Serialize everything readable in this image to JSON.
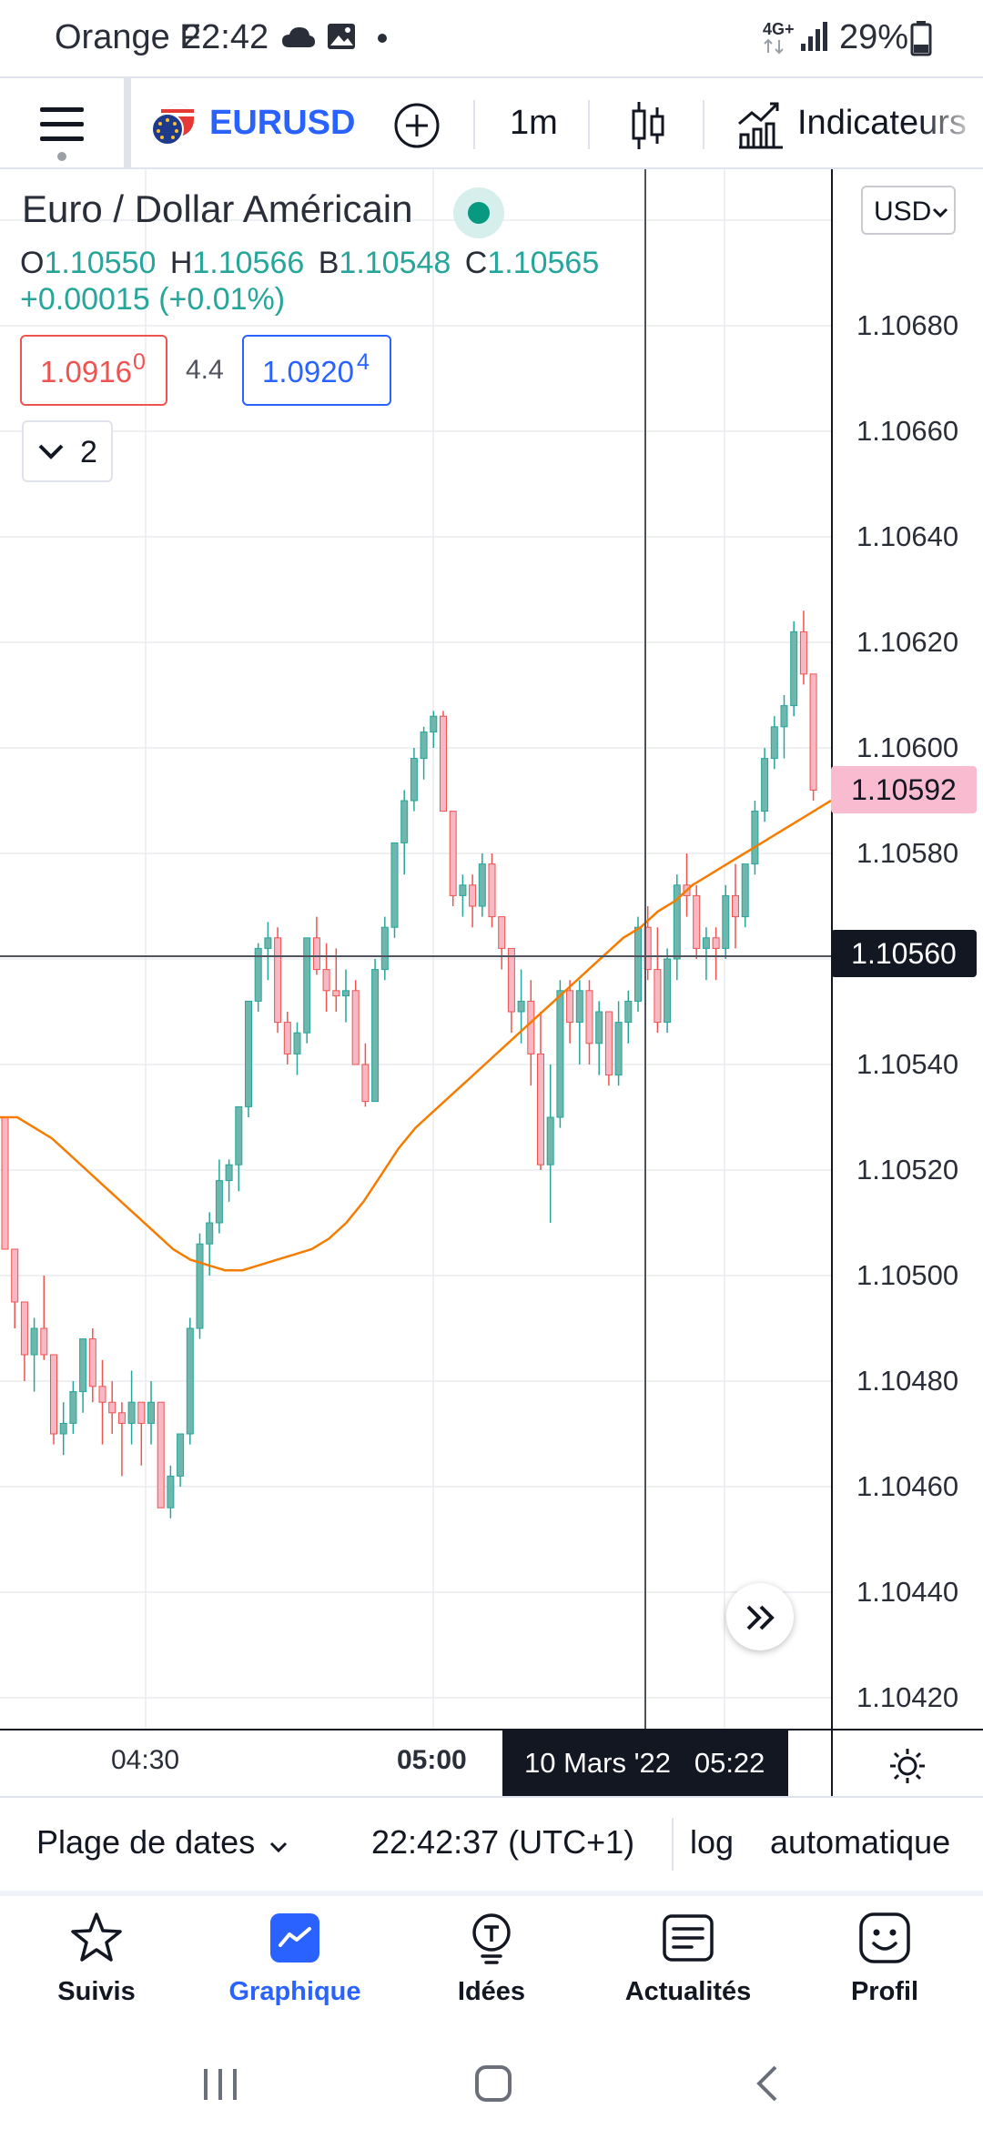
{
  "status_bar": {
    "carrier": "Orange F",
    "time": "22:42",
    "network": "4G+",
    "battery": "29%"
  },
  "toolbar": {
    "symbol": "EURUSD",
    "interval": "1m",
    "indicators_label": "Indicateurs"
  },
  "legend": {
    "title": "Euro / Dollar Américain",
    "open_key": "O",
    "open": "1.10550",
    "high_key": "H",
    "high": "1.10566",
    "low_key": "B",
    "low": "1.10548",
    "close_key": "C",
    "close": "1.10565",
    "change": "+0.00015 (+0.01%)",
    "sell_price_main": "1.0916",
    "sell_price_sup": "0",
    "spread": "4.4",
    "buy_price_main": "1.0920",
    "buy_price_sup": "4",
    "collapse_count": "2",
    "currency": "USD"
  },
  "price_axis": {
    "labels": [
      "1.10680",
      "1.10660",
      "1.10640",
      "1.10620",
      "1.10600",
      "1.10580",
      "1.10540",
      "1.10520",
      "1.10500",
      "1.10480",
      "1.10460",
      "1.10440",
      "1.10420"
    ],
    "last_price": "1.10592",
    "crosshair_price": "1.10560"
  },
  "time_axis": {
    "labels": [
      "04:30",
      "05:00"
    ],
    "crosshair_time": "10 Mars '22   05:22"
  },
  "date_bar": {
    "range_label": "Plage de dates",
    "clock": "22:42:37 (UTC+1)",
    "log_label": "log",
    "auto_label": "automatique"
  },
  "nav": {
    "items": [
      {
        "label": "Suivis"
      },
      {
        "label": "Graphique"
      },
      {
        "label": "Idées"
      },
      {
        "label": "Actualités"
      },
      {
        "label": "Profil"
      }
    ]
  },
  "colors": {
    "up": "#26a69a",
    "up_fill": "#6fb6ac",
    "down": "#ef5350",
    "down_fill": "#f7b8c4",
    "ma": "#f57c00",
    "accent": "#2962ff",
    "last_price_bg": "#f8bbd0"
  },
  "chart_data": {
    "type": "candlestick",
    "symbol": "EURUSD",
    "ylim": [
      1.10412,
      1.10708
    ],
    "candles": [
      [
        1.1053,
        1.1053,
        1.10505,
        1.10505
      ],
      [
        1.10505,
        1.10505,
        1.1049,
        1.10495
      ],
      [
        1.10495,
        1.10495,
        1.1048,
        1.10485
      ],
      [
        1.10485,
        1.10492,
        1.10478,
        1.1049
      ],
      [
        1.1049,
        1.105,
        1.10484,
        1.10485
      ],
      [
        1.10485,
        1.10485,
        1.10468,
        1.1047
      ],
      [
        1.1047,
        1.10476,
        1.10466,
        1.10472
      ],
      [
        1.10472,
        1.1048,
        1.1047,
        1.10478
      ],
      [
        1.10478,
        1.10488,
        1.10474,
        1.10488
      ],
      [
        1.10488,
        1.1049,
        1.10476,
        1.10479
      ],
      [
        1.10479,
        1.10484,
        1.10468,
        1.10476
      ],
      [
        1.10476,
        1.1048,
        1.1047,
        1.10474
      ],
      [
        1.10474,
        1.10476,
        1.10462,
        1.10472
      ],
      [
        1.10472,
        1.10482,
        1.10468,
        1.10476
      ],
      [
        1.10476,
        1.10476,
        1.10464,
        1.10472
      ],
      [
        1.10472,
        1.1048,
        1.10468,
        1.10476
      ],
      [
        1.10476,
        1.10476,
        1.10456,
        1.10456
      ],
      [
        1.10456,
        1.10464,
        1.10454,
        1.10462
      ],
      [
        1.10462,
        1.1047,
        1.1046,
        1.1047
      ],
      [
        1.1047,
        1.10492,
        1.10468,
        1.1049
      ],
      [
        1.1049,
        1.10508,
        1.10488,
        1.10506
      ],
      [
        1.10506,
        1.10512,
        1.105,
        1.1051
      ],
      [
        1.1051,
        1.10522,
        1.10508,
        1.10518
      ],
      [
        1.10518,
        1.10522,
        1.10514,
        1.10521
      ],
      [
        1.10521,
        1.10532,
        1.10516,
        1.10532
      ],
      [
        1.10532,
        1.10552,
        1.1053,
        1.10552
      ],
      [
        1.10552,
        1.10563,
        1.1055,
        1.10562
      ],
      [
        1.10562,
        1.10567,
        1.10556,
        1.10564
      ],
      [
        1.10564,
        1.10566,
        1.10546,
        1.10548
      ],
      [
        1.10548,
        1.1055,
        1.1054,
        1.10542
      ],
      [
        1.10542,
        1.10548,
        1.10538,
        1.10546
      ],
      [
        1.10546,
        1.10564,
        1.10544,
        1.10564
      ],
      [
        1.10564,
        1.10568,
        1.10557,
        1.10558
      ],
      [
        1.10558,
        1.10563,
        1.1055,
        1.10554
      ],
      [
        1.10554,
        1.10562,
        1.1055,
        1.10553
      ],
      [
        1.10553,
        1.10558,
        1.10548,
        1.10554
      ],
      [
        1.10554,
        1.10556,
        1.1054,
        1.1054
      ],
      [
        1.1054,
        1.10544,
        1.10532,
        1.10533
      ],
      [
        1.10533,
        1.1056,
        1.10533,
        1.10558
      ],
      [
        1.10558,
        1.10568,
        1.10556,
        1.10566
      ],
      [
        1.10566,
        1.10582,
        1.10564,
        1.10582
      ],
      [
        1.10582,
        1.10592,
        1.10576,
        1.1059
      ],
      [
        1.1059,
        1.106,
        1.10588,
        1.10598
      ],
      [
        1.10598,
        1.10604,
        1.10594,
        1.10603
      ],
      [
        1.10603,
        1.10607,
        1.106,
        1.10606
      ],
      [
        1.10606,
        1.10607,
        1.10588,
        1.10588
      ],
      [
        1.10588,
        1.10588,
        1.1057,
        1.10572
      ],
      [
        1.10572,
        1.10576,
        1.10568,
        1.10574
      ],
      [
        1.10574,
        1.10576,
        1.10566,
        1.1057
      ],
      [
        1.1057,
        1.1058,
        1.10568,
        1.10578
      ],
      [
        1.10578,
        1.1058,
        1.10566,
        1.10568
      ],
      [
        1.10568,
        1.10568,
        1.10558,
        1.10562
      ],
      [
        1.10562,
        1.10562,
        1.10546,
        1.1055
      ],
      [
        1.1055,
        1.10558,
        1.10544,
        1.10552
      ],
      [
        1.10552,
        1.10556,
        1.10536,
        1.10542
      ],
      [
        1.10542,
        1.1055,
        1.1052,
        1.10521
      ],
      [
        1.10521,
        1.1054,
        1.1051,
        1.1053
      ],
      [
        1.1053,
        1.10556,
        1.10528,
        1.10554
      ],
      [
        1.10554,
        1.10556,
        1.10544,
        1.10548
      ],
      [
        1.10548,
        1.10556,
        1.1054,
        1.10554
      ],
      [
        1.10554,
        1.10556,
        1.1054,
        1.10544
      ],
      [
        1.10544,
        1.10552,
        1.10538,
        1.1055
      ],
      [
        1.1055,
        1.1055,
        1.10536,
        1.10538
      ],
      [
        1.10538,
        1.10552,
        1.10536,
        1.10548
      ],
      [
        1.10548,
        1.10554,
        1.10544,
        1.10552
      ],
      [
        1.10552,
        1.10568,
        1.1055,
        1.10566
      ],
      [
        1.10566,
        1.1057,
        1.10556,
        1.10558
      ],
      [
        1.10558,
        1.10566,
        1.10546,
        1.10548
      ],
      [
        1.10548,
        1.10562,
        1.10546,
        1.1056
      ],
      [
        1.1056,
        1.10576,
        1.10556,
        1.10574
      ],
      [
        1.10574,
        1.1058,
        1.10568,
        1.10572
      ],
      [
        1.10572,
        1.10574,
        1.1056,
        1.10562
      ],
      [
        1.10562,
        1.10566,
        1.10556,
        1.10564
      ],
      [
        1.10564,
        1.10566,
        1.10556,
        1.10562
      ],
      [
        1.10562,
        1.10574,
        1.1056,
        1.10572
      ],
      [
        1.10572,
        1.10578,
        1.10562,
        1.10568
      ],
      [
        1.10568,
        1.10578,
        1.10566,
        1.10578
      ],
      [
        1.10578,
        1.1059,
        1.10576,
        1.10588
      ],
      [
        1.10588,
        1.106,
        1.10586,
        1.10598
      ],
      [
        1.10598,
        1.10606,
        1.10596,
        1.10604
      ],
      [
        1.10604,
        1.1061,
        1.10598,
        1.10608
      ],
      [
        1.10608,
        1.10624,
        1.10606,
        1.10622
      ],
      [
        1.10622,
        1.10626,
        1.10612,
        1.10614
      ],
      [
        1.10614,
        1.10614,
        1.1059,
        1.10592
      ]
    ],
    "ma": [
      1.1053,
      1.1053,
      1.10528,
      1.10526,
      1.10523,
      1.1052,
      1.10517,
      1.10514,
      1.10511,
      1.10508,
      1.10505,
      1.10503,
      1.10502,
      1.10501,
      1.10501,
      1.10502,
      1.10503,
      1.10504,
      1.10505,
      1.10507,
      1.1051,
      1.10514,
      1.10519,
      1.10524,
      1.10528,
      1.10531,
      1.10534,
      1.10537,
      1.1054,
      1.10543,
      1.10546,
      1.10549,
      1.10552,
      1.10555,
      1.10558,
      1.10561,
      1.10564,
      1.10566,
      1.10569,
      1.10571,
      1.10574,
      1.10576,
      1.10578,
      1.1058,
      1.10582,
      1.10584,
      1.10586,
      1.10588,
      1.1059
    ]
  }
}
